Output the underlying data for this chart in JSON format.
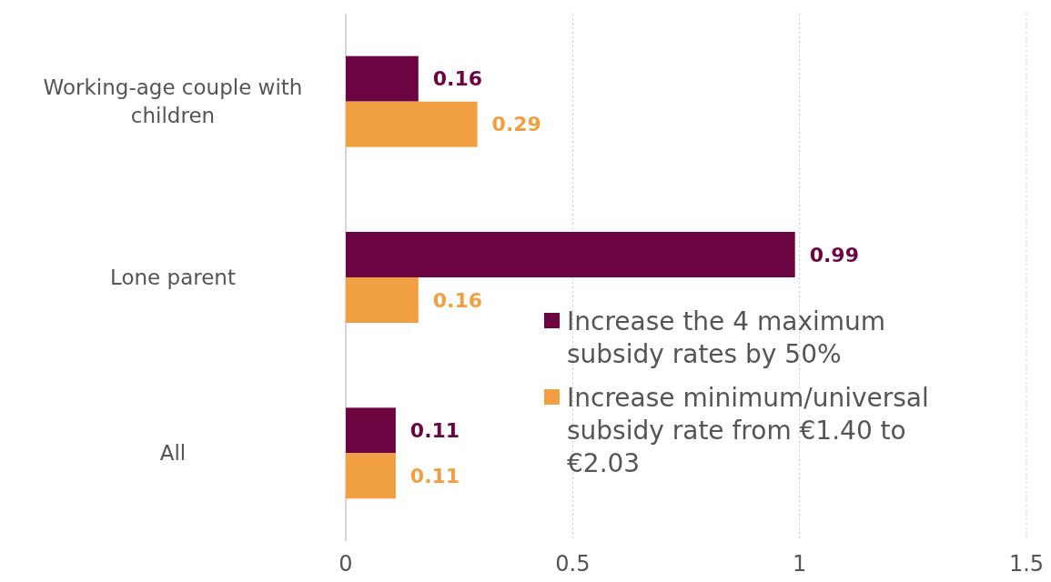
{
  "chart_data": {
    "type": "bar",
    "orientation": "horizontal",
    "categories": [
      "Working-age couple with children",
      "Lone parent",
      "All"
    ],
    "series": [
      {
        "name": "Increase the 4 maximum subsidy rates by 50%",
        "color": "#6b0441",
        "values": [
          0.16,
          0.99,
          0.11
        ]
      },
      {
        "name": "Increase minimum/universal subsidy rate from €1.40 to €2.03",
        "color": "#f0a042",
        "values": [
          0.29,
          0.16,
          0.11
        ]
      }
    ],
    "xlim": [
      0,
      1.5
    ],
    "xticks": [
      0,
      0.5,
      1,
      1.5
    ],
    "grid": "x",
    "legend": "bottom right",
    "data_labels": true
  }
}
